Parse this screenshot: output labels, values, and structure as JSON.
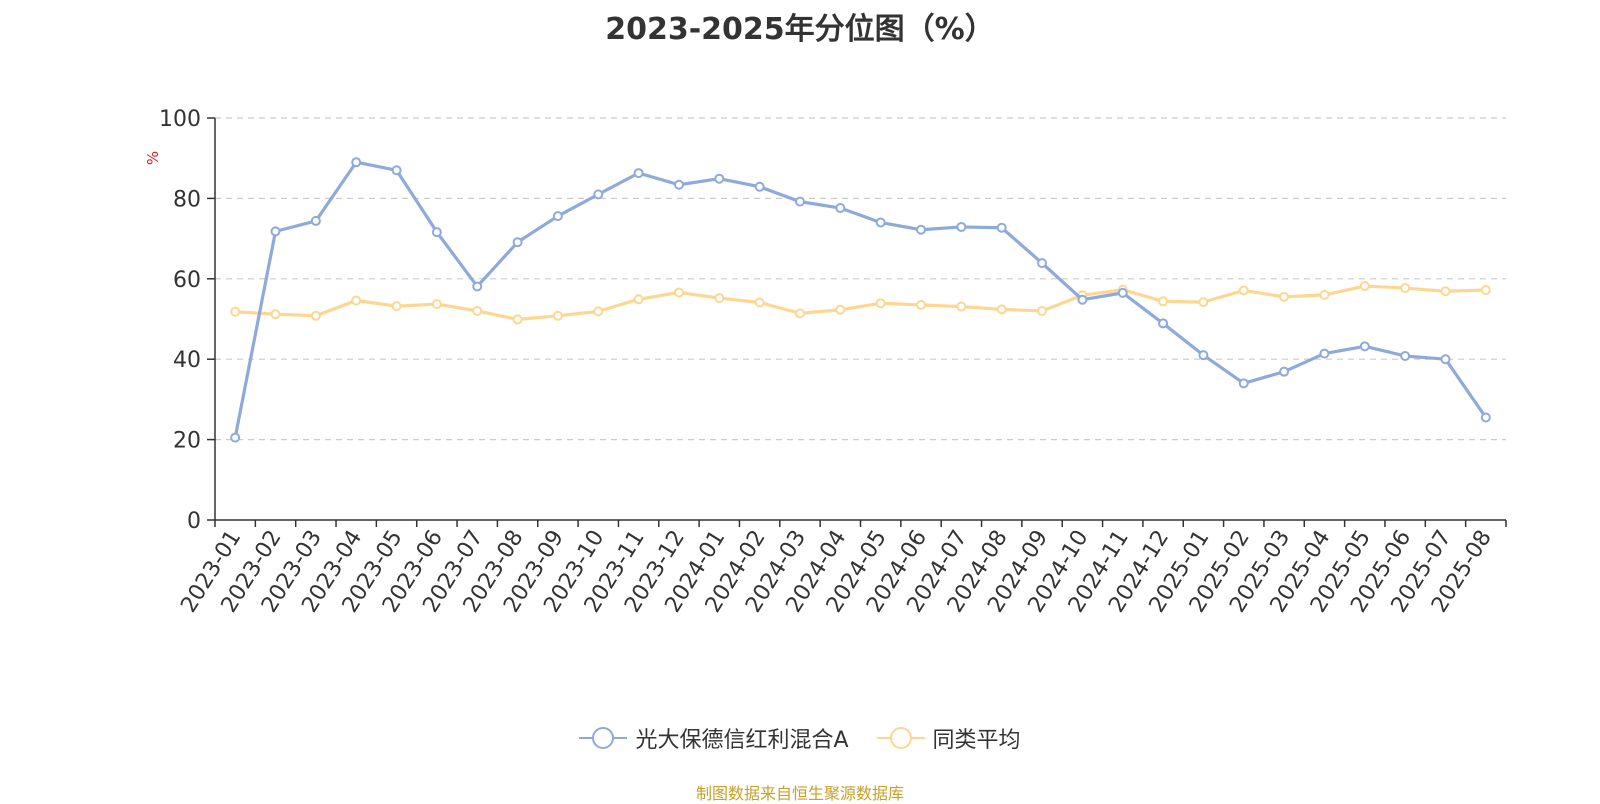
{
  "chart_data": {
    "type": "line",
    "title": "2023-2025年分位图（%）",
    "ylabel": "%",
    "xlabel": "",
    "ylim": [
      0,
      100
    ],
    "yticks": [
      0,
      20,
      40,
      60,
      80,
      100
    ],
    "grid": true,
    "legend_position": "bottom",
    "categories": [
      "2023-01",
      "2023-02",
      "2023-03",
      "2023-04",
      "2023-05",
      "2023-06",
      "2023-07",
      "2023-08",
      "2023-09",
      "2023-10",
      "2023-11",
      "2023-12",
      "2024-01",
      "2024-02",
      "2024-03",
      "2024-04",
      "2024-05",
      "2024-06",
      "2024-07",
      "2024-08",
      "2024-09",
      "2024-10",
      "2024-11",
      "2024-12",
      "2025-01",
      "2025-02",
      "2025-03",
      "2025-04",
      "2025-05",
      "2025-06",
      "2025-07",
      "2025-08"
    ],
    "series": [
      {
        "name": "光大保德信红利混合A",
        "color": "#8eaadb",
        "values": [
          20.5,
          71.8,
          74.4,
          89.0,
          87.0,
          71.6,
          58.1,
          69.1,
          75.6,
          81.0,
          86.3,
          83.4,
          84.9,
          82.9,
          79.2,
          77.6,
          74.0,
          72.2,
          72.9,
          72.7,
          63.9,
          54.8,
          56.5,
          48.9,
          41.0,
          34.0,
          36.9,
          41.4,
          43.2,
          40.8,
          40.0,
          25.5
        ]
      },
      {
        "name": "同类平均",
        "color": "#fdd792",
        "values": [
          51.8,
          51.2,
          50.8,
          54.6,
          53.2,
          53.7,
          52.0,
          49.9,
          50.8,
          51.9,
          54.9,
          56.6,
          55.2,
          54.1,
          51.4,
          52.3,
          53.9,
          53.5,
          53.1,
          52.4,
          52.0,
          55.9,
          57.3,
          54.4,
          54.2,
          57.1,
          55.5,
          56.0,
          58.2,
          57.7,
          56.9,
          57.2
        ]
      }
    ]
  },
  "source_text": "制图数据来自恒生聚源数据库",
  "axis_color": "#333333",
  "grid_color": "#cccccc",
  "ylabel_color": "#e02020"
}
